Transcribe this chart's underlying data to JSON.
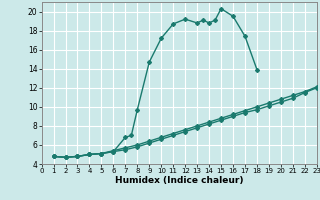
{
  "xlabel": "Humidex (Indice chaleur)",
  "ylabel": "",
  "background_color": "#cce9e9",
  "grid_color": "#ffffff",
  "line_color": "#1a7a6e",
  "xlim": [
    0,
    23
  ],
  "ylim": [
    4,
    21
  ],
  "xticks": [
    0,
    1,
    2,
    3,
    4,
    5,
    6,
    7,
    8,
    9,
    10,
    11,
    12,
    13,
    14,
    15,
    16,
    17,
    18,
    19,
    20,
    21,
    22,
    23
  ],
  "yticks": [
    4,
    6,
    8,
    10,
    12,
    14,
    16,
    18,
    20
  ],
  "curve1_x": [
    1,
    2,
    3,
    4,
    5,
    6,
    7,
    7.5,
    8,
    9,
    10,
    11,
    12,
    13,
    13.5,
    14,
    14.5,
    15,
    16,
    17,
    18
  ],
  "curve1_y": [
    4.8,
    4.7,
    4.8,
    5.0,
    5.1,
    5.3,
    6.8,
    7.0,
    9.7,
    14.7,
    17.2,
    18.7,
    19.2,
    18.8,
    19.1,
    18.8,
    19.1,
    20.3,
    19.5,
    17.4,
    13.9
  ],
  "curve2_x": [
    1,
    2,
    3,
    4,
    5,
    6,
    7,
    8,
    9,
    10,
    11,
    12,
    13,
    14,
    15,
    16,
    17,
    18,
    19,
    20,
    21,
    22,
    23
  ],
  "curve2_y": [
    4.8,
    4.7,
    4.8,
    5.0,
    5.1,
    5.3,
    5.5,
    5.8,
    6.2,
    6.6,
    7.0,
    7.4,
    7.8,
    8.2,
    8.6,
    9.0,
    9.4,
    9.7,
    10.1,
    10.5,
    10.9,
    11.5,
    12.0
  ],
  "curve3_x": [
    1,
    2,
    3,
    4,
    5,
    6,
    7,
    8,
    9,
    10,
    11,
    12,
    13,
    14,
    15,
    16,
    17,
    18,
    19,
    20,
    21,
    22,
    23
  ],
  "curve3_y": [
    4.8,
    4.7,
    4.8,
    5.0,
    5.1,
    5.4,
    5.7,
    6.0,
    6.4,
    6.8,
    7.2,
    7.6,
    8.0,
    8.4,
    8.8,
    9.2,
    9.6,
    10.0,
    10.4,
    10.8,
    11.2,
    11.6,
    12.1
  ],
  "marker": "D",
  "markersize": 2.0,
  "linewidth": 1.0
}
